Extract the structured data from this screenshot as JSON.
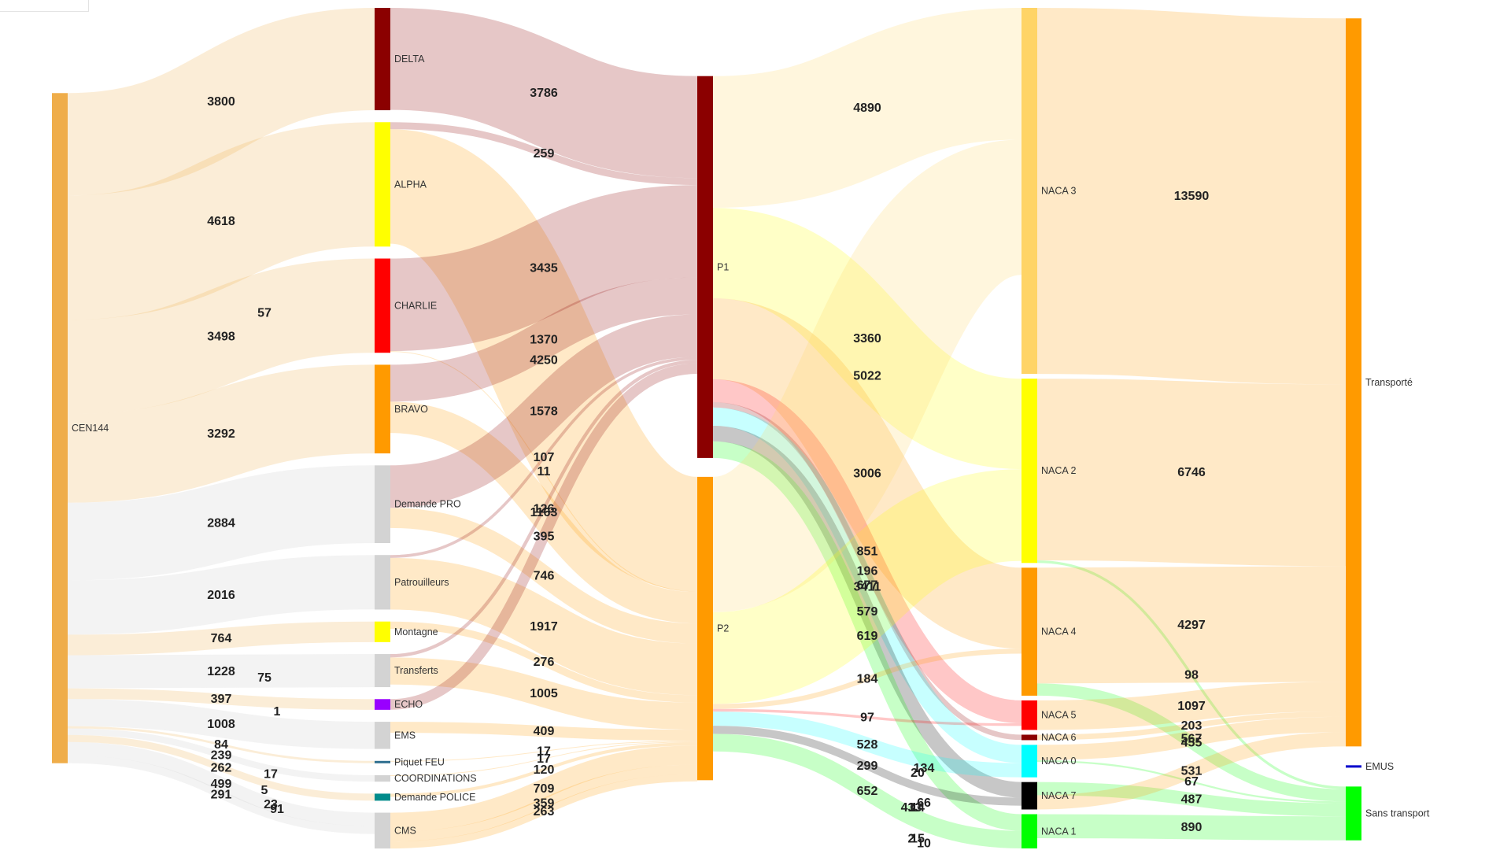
{
  "diagram": {
    "type": "sankey",
    "stages": [
      {
        "nodes": [
          {
            "id": "cen",
            "label": "CEN144",
            "color": "#efad4a"
          }
        ]
      },
      {
        "nodes": [
          {
            "id": "delta",
            "label": "DELTA",
            "color": "#8b0000"
          },
          {
            "id": "alpha",
            "label": "ALPHA",
            "color": "#ffff00"
          },
          {
            "id": "charlie",
            "label": "CHARLIE",
            "color": "#ff0000"
          },
          {
            "id": "bravo",
            "label": "BRAVO",
            "color": "#ff9a00"
          },
          {
            "id": "dpro",
            "label": "Demande PRO",
            "color": "#d3d3d3"
          },
          {
            "id": "patr",
            "label": "Patrouilleurs",
            "color": "#d3d3d3"
          },
          {
            "id": "mont",
            "label": "Montagne",
            "color": "#ffff00"
          },
          {
            "id": "transf",
            "label": "Transferts",
            "color": "#d3d3d3"
          },
          {
            "id": "echo",
            "label": "ECHO",
            "color": "#9900ff"
          },
          {
            "id": "ems",
            "label": "EMS",
            "color": "#d3d3d3"
          },
          {
            "id": "piquet",
            "label": "Piquet FEU",
            "color": "#2f6f8f"
          },
          {
            "id": "coord",
            "label": "COORDINATIONS",
            "color": "#d3d3d3"
          },
          {
            "id": "police",
            "label": "Demande POLICE",
            "color": "#008b8b"
          },
          {
            "id": "cms",
            "label": "CMS",
            "color": "#d3d3d3"
          }
        ]
      },
      {
        "nodes": [
          {
            "id": "p1",
            "label": "P1",
            "color": "#8b0000"
          },
          {
            "id": "p2",
            "label": "P2",
            "color": "#ff9a00"
          }
        ]
      },
      {
        "nodes": [
          {
            "id": "n3",
            "label": "NACA 3",
            "color": "#ffd466"
          },
          {
            "id": "n2",
            "label": "NACA 2",
            "color": "#ffff00"
          },
          {
            "id": "n4",
            "label": "NACA 4",
            "color": "#ff9a00"
          },
          {
            "id": "n5",
            "label": "NACA 5",
            "color": "#ff0000"
          },
          {
            "id": "n6",
            "label": "NACA 6",
            "color": "#8b0000"
          },
          {
            "id": "n0",
            "label": "NACA 0",
            "color": "#00ffff"
          },
          {
            "id": "n7",
            "label": "NACA 7",
            "color": "#000000"
          },
          {
            "id": "n1",
            "label": "NACA 1",
            "color": "#00ff00"
          }
        ]
      },
      {
        "nodes": [
          {
            "id": "transporte",
            "label": "Transporté",
            "color": "#ff9a00"
          },
          {
            "id": "emus",
            "label": "EMUS",
            "color": "#0000cc"
          },
          {
            "id": "sans",
            "label": "Sans transport",
            "color": "#00ff00"
          }
        ]
      }
    ],
    "links": [
      {
        "source": "cen",
        "target": "delta",
        "value": 3800
      },
      {
        "source": "cen",
        "target": "alpha",
        "value": 4618
      },
      {
        "source": "cen",
        "target": "charlie",
        "value": 3498
      },
      {
        "source": "cen",
        "target": "bravo",
        "value": 3292
      },
      {
        "source": "cen",
        "target": "dpro",
        "value": 2884
      },
      {
        "source": "cen",
        "target": "patr",
        "value": 2016
      },
      {
        "source": "cen",
        "target": "mont",
        "value": 764
      },
      {
        "source": "cen",
        "target": "transf",
        "value": 1228
      },
      {
        "source": "cen",
        "target": "echo",
        "value": 397
      },
      {
        "source": "cen",
        "target": "ems",
        "value": 1008
      },
      {
        "source": "cen",
        "target": "piquet",
        "value": 84
      },
      {
        "source": "cen",
        "target": "coord",
        "value": 239
      },
      {
        "source": "cen",
        "target": "police",
        "value": 262
      },
      {
        "source": "cen",
        "target": "cms",
        "value": 499
      },
      {
        "source": "cen",
        "target": "cms",
        "value": 291
      },
      {
        "source": "delta",
        "target": "p1",
        "value": 3786
      },
      {
        "source": "alpha",
        "target": "p1",
        "value": 259
      },
      {
        "source": "alpha",
        "target": "p2",
        "value": 4250
      },
      {
        "source": "charlie",
        "target": "p1",
        "value": 3435
      },
      {
        "source": "charlie",
        "target": "p2",
        "value": 11
      },
      {
        "source": "bravo",
        "target": "p1",
        "value": 1370
      },
      {
        "source": "bravo",
        "target": "p2",
        "value": 1163
      },
      {
        "source": "dpro",
        "target": "p1",
        "value": 1578
      },
      {
        "source": "dpro",
        "target": "p2",
        "value": 746
      },
      {
        "source": "patr",
        "target": "p1",
        "value": 107
      },
      {
        "source": "patr",
        "target": "p2",
        "value": 1917
      },
      {
        "source": "mont",
        "target": "p2",
        "value": 276
      },
      {
        "source": "transf",
        "target": "p1",
        "value": 126
      },
      {
        "source": "transf",
        "target": "p2",
        "value": 1005
      },
      {
        "source": "echo",
        "target": "p1",
        "value": 395
      },
      {
        "source": "ems",
        "target": "p2",
        "value": 409
      },
      {
        "source": "piquet",
        "target": "p2",
        "value": 17
      },
      {
        "source": "coord",
        "target": "p2",
        "value": 17
      },
      {
        "source": "police",
        "target": "p2",
        "value": 120
      },
      {
        "source": "cms",
        "target": "p2",
        "value": 709
      },
      {
        "source": "cms",
        "target": "p2",
        "value": 359
      },
      {
        "source": "cms",
        "target": "p2",
        "value": 263
      },
      {
        "source": "p1",
        "target": "n3",
        "value": 4890
      },
      {
        "source": "p1",
        "target": "n2",
        "value": 3360
      },
      {
        "source": "p1",
        "target": "n4",
        "value": 3006
      },
      {
        "source": "p1",
        "target": "n5",
        "value": 851
      },
      {
        "source": "p1",
        "target": "n6",
        "value": 196
      },
      {
        "source": "p1",
        "target": "n0",
        "value": 677
      },
      {
        "source": "p1",
        "target": "n7",
        "value": 579
      },
      {
        "source": "p1",
        "target": "n1",
        "value": 619
      },
      {
        "source": "p2",
        "target": "n3",
        "value": 5022
      },
      {
        "source": "p2",
        "target": "n2",
        "value": 3411
      },
      {
        "source": "p2",
        "target": "n4",
        "value": 184
      },
      {
        "source": "p2",
        "target": "n5",
        "value": 97
      },
      {
        "source": "p2",
        "target": "n0",
        "value": 528
      },
      {
        "source": "p2",
        "target": "n7",
        "value": 299
      },
      {
        "source": "p2",
        "target": "n1",
        "value": 652
      },
      {
        "source": "n3",
        "target": "transporte",
        "value": 13590
      },
      {
        "source": "n2",
        "target": "transporte",
        "value": 6746
      },
      {
        "source": "n2",
        "target": "sans",
        "value": 98
      },
      {
        "source": "n4",
        "target": "transporte",
        "value": 4297
      },
      {
        "source": "n4",
        "target": "sans",
        "value": 455
      },
      {
        "source": "n5",
        "target": "transporte",
        "value": 1097
      },
      {
        "source": "n6",
        "target": "transporte",
        "value": 203
      },
      {
        "source": "n0",
        "target": "transporte",
        "value": 567
      },
      {
        "source": "n0",
        "target": "sans",
        "value": 67
      },
      {
        "source": "n7",
        "target": "sans",
        "value": 487
      },
      {
        "source": "n7",
        "target": "transporte",
        "value": 531
      },
      {
        "source": "n1",
        "target": "sans",
        "value": 890
      }
    ],
    "extra_labels": [
      {
        "text": "57",
        "color": "#ff0000",
        "near": "charlie"
      },
      {
        "text": "17",
        "near": "piquet"
      },
      {
        "text": "1",
        "near": "echo"
      },
      {
        "text": "5",
        "near": "coord"
      },
      {
        "text": "23",
        "near": "police"
      },
      {
        "text": "91",
        "near": "police"
      },
      {
        "text": "75",
        "near": "transf"
      },
      {
        "text": "14",
        "near": "n7"
      },
      {
        "text": "66",
        "near": "n7"
      },
      {
        "text": "3",
        "near": "n7"
      },
      {
        "text": "15",
        "near": "n1"
      },
      {
        "text": "10",
        "near": "n1"
      },
      {
        "text": "2",
        "near": "n1"
      },
      {
        "text": "20",
        "near": "n0"
      },
      {
        "text": "134",
        "near": "n0"
      },
      {
        "text": "413",
        "near": "n7"
      }
    ]
  }
}
